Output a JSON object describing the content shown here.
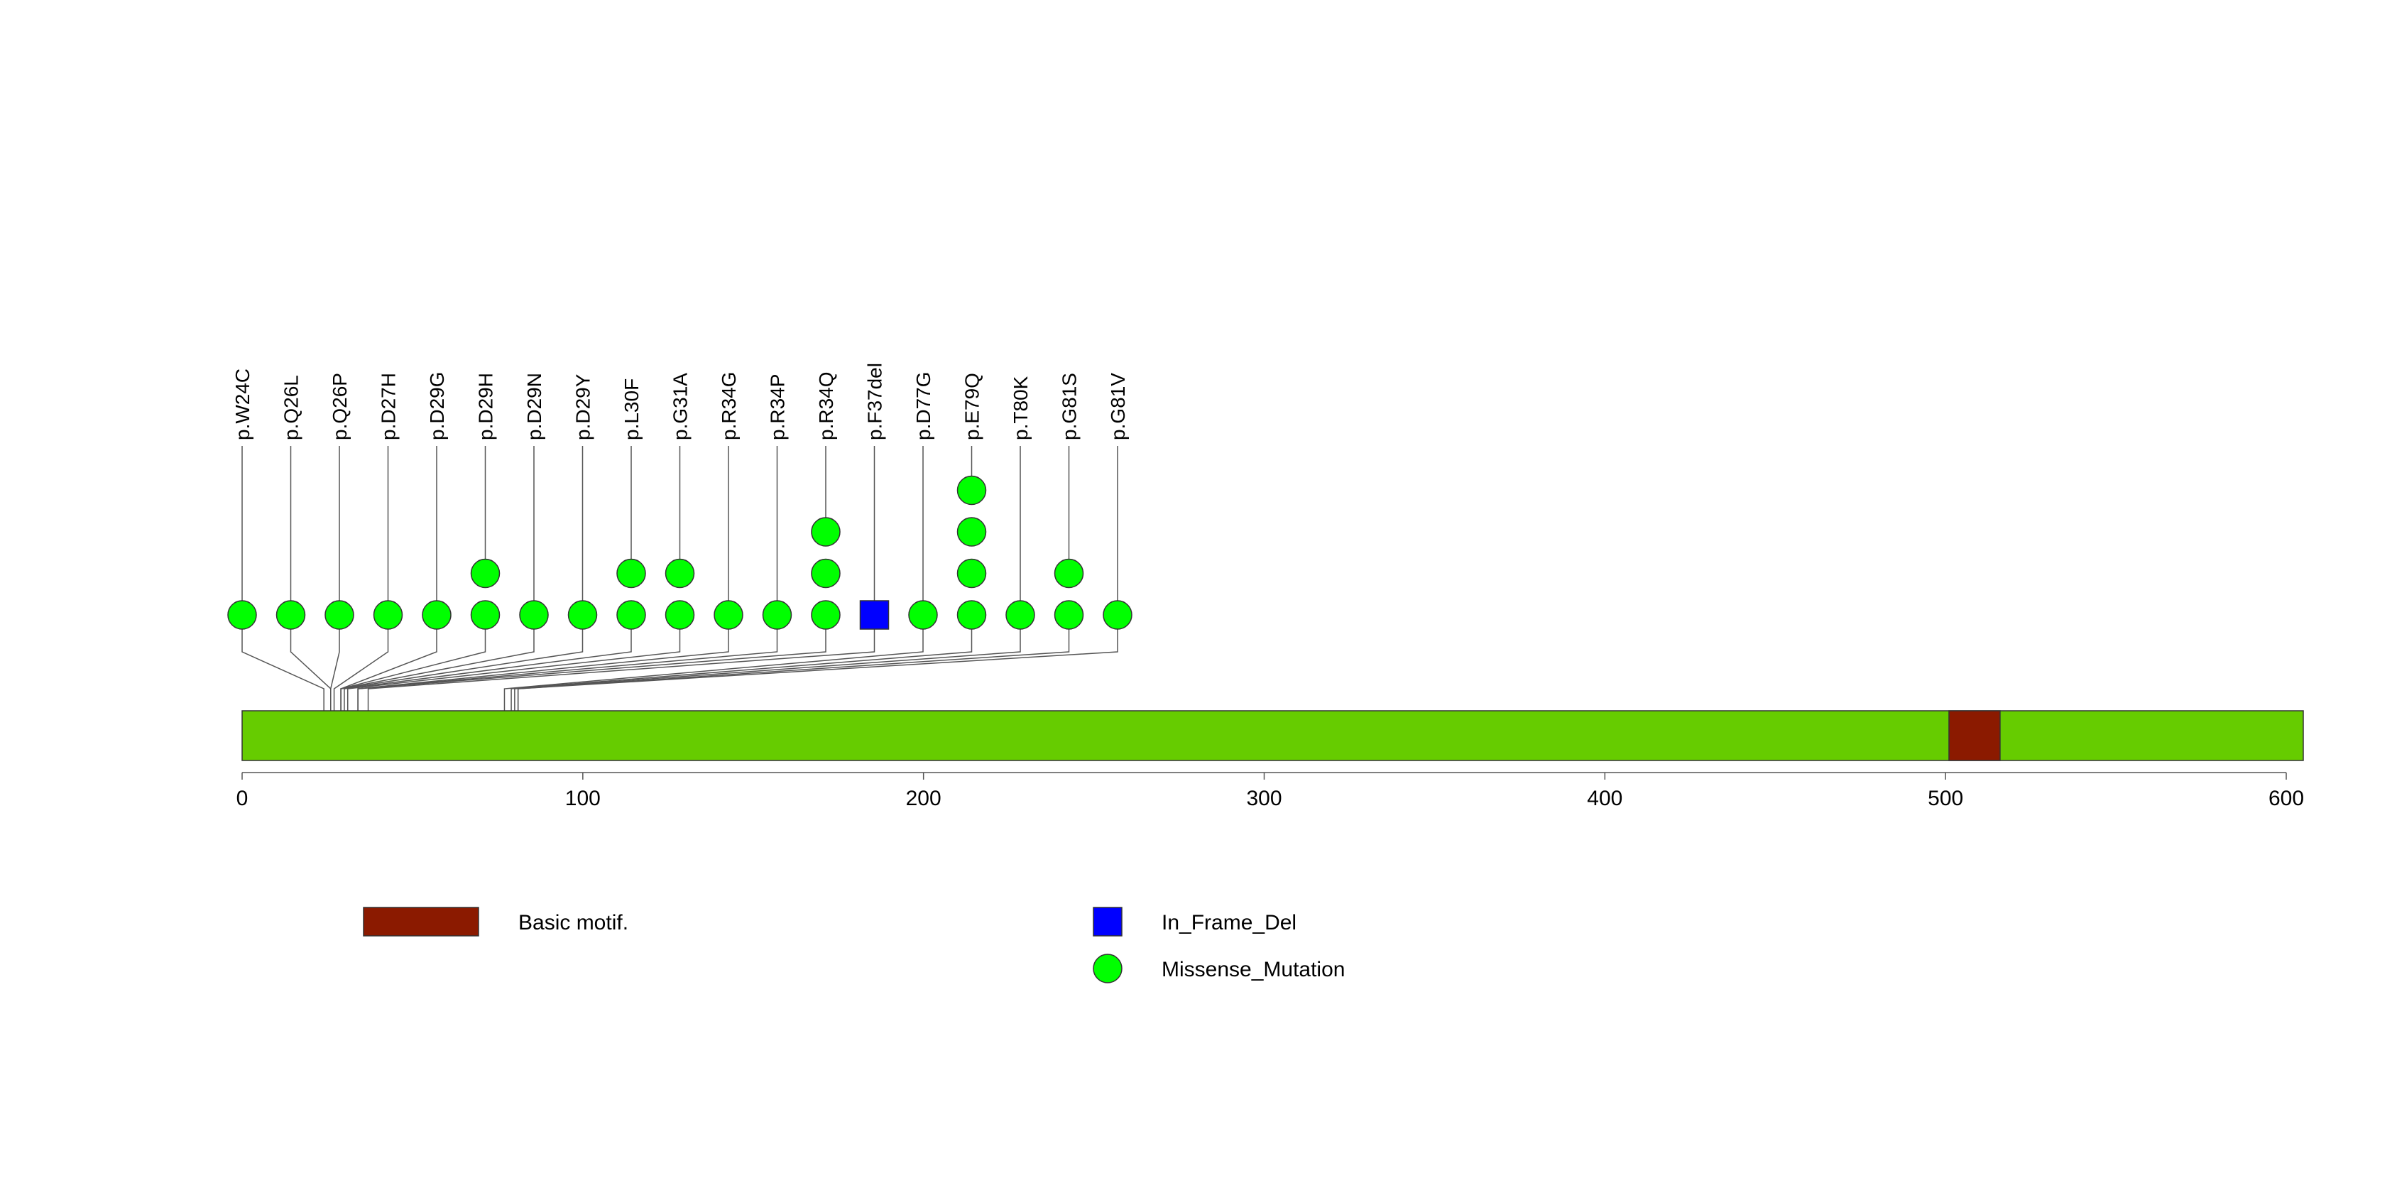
{
  "chart_data": {
    "type": "lollipop",
    "protein_length": 605,
    "xlim": [
      0,
      605
    ],
    "x_ticks": [
      0,
      100,
      200,
      300,
      400,
      500,
      600
    ],
    "domains": [
      {
        "name": "Basic motif.",
        "start": 501,
        "end": 516,
        "color": "#8b1a00"
      }
    ],
    "protein_color": "#66cc00",
    "mutations": [
      {
        "label": "p.W24C",
        "position": 24,
        "count": 1,
        "type": "Missense_Mutation"
      },
      {
        "label": "p.Q26L",
        "position": 26,
        "count": 1,
        "type": "Missense_Mutation"
      },
      {
        "label": "p.Q26P",
        "position": 26,
        "count": 1,
        "type": "Missense_Mutation"
      },
      {
        "label": "p.D27H",
        "position": 27,
        "count": 1,
        "type": "Missense_Mutation"
      },
      {
        "label": "p.D29G",
        "position": 29,
        "count": 1,
        "type": "Missense_Mutation"
      },
      {
        "label": "p.D29H",
        "position": 29,
        "count": 2,
        "type": "Missense_Mutation"
      },
      {
        "label": "p.D29N",
        "position": 29,
        "count": 1,
        "type": "Missense_Mutation"
      },
      {
        "label": "p.D29Y",
        "position": 29,
        "count": 1,
        "type": "Missense_Mutation"
      },
      {
        "label": "p.L30F",
        "position": 30,
        "count": 2,
        "type": "Missense_Mutation"
      },
      {
        "label": "p.G31A",
        "position": 31,
        "count": 2,
        "type": "Missense_Mutation"
      },
      {
        "label": "p.R34G",
        "position": 34,
        "count": 1,
        "type": "Missense_Mutation"
      },
      {
        "label": "p.R34P",
        "position": 34,
        "count": 1,
        "type": "Missense_Mutation"
      },
      {
        "label": "p.R34Q",
        "position": 34,
        "count": 3,
        "type": "Missense_Mutation"
      },
      {
        "label": "p.F37del",
        "position": 37,
        "count": 1,
        "type": "In_Frame_Del"
      },
      {
        "label": "p.D77G",
        "position": 77,
        "count": 1,
        "type": "Missense_Mutation"
      },
      {
        "label": "p.E79Q",
        "position": 79,
        "count": 4,
        "type": "Missense_Mutation"
      },
      {
        "label": "p.T80K",
        "position": 80,
        "count": 1,
        "type": "Missense_Mutation"
      },
      {
        "label": "p.G81S",
        "position": 81,
        "count": 2,
        "type": "Missense_Mutation"
      },
      {
        "label": "p.G81V",
        "position": 81,
        "count": 1,
        "type": "Missense_Mutation"
      }
    ],
    "mutation_types": [
      {
        "name": "In_Frame_Del",
        "shape": "square",
        "color": "#0000ff"
      },
      {
        "name": "Missense_Mutation",
        "shape": "circle",
        "color": "#00ff00"
      }
    ],
    "legend": {
      "domain_entries": [
        {
          "name": "Basic motif.",
          "color": "#8b1a00"
        }
      ],
      "mutation_entries": [
        "In_Frame_Del",
        "Missense_Mutation"
      ],
      "placement": "bottom"
    }
  }
}
